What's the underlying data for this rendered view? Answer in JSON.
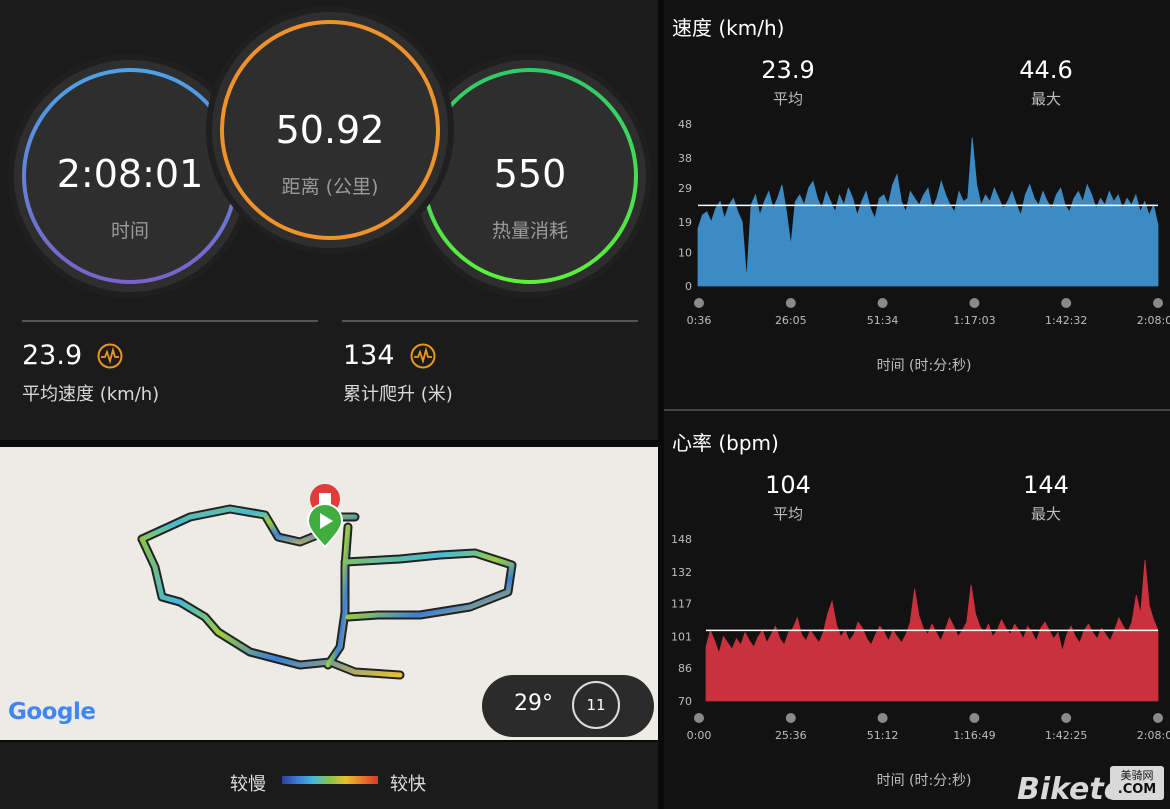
{
  "summary": {
    "time": {
      "value": "2:08:01",
      "label": "时间"
    },
    "distance": {
      "value": "50.92",
      "label": "距离 (公里)"
    },
    "calories": {
      "value": "550",
      "label": "热量消耗"
    },
    "avg_speed": {
      "value": "23.9",
      "label": "平均速度 (km/h)"
    },
    "elevation_gain": {
      "value": "134",
      "label": "累计爬升 (米)"
    },
    "colors": {
      "time_ring_top": "#4aa3e8",
      "time_ring_bottom": "#7a62c9",
      "distance_ring": "#f0922b",
      "calories_ring": "#3fd24f",
      "pulse_icon": "#e8961e"
    },
    "icons": {
      "pulse": "pulse-icon"
    }
  },
  "map": {
    "google_logo": "Google",
    "temperature": "29°",
    "wind_speed": "11",
    "markers": {
      "start": "play-marker",
      "end": "stop-marker"
    }
  },
  "legend": {
    "slow": "较慢",
    "fast": "较快",
    "gradient": [
      "#2b3fa8",
      "#3a7fd8",
      "#46b9d6",
      "#8bc34a",
      "#e6c12e",
      "#e8782a",
      "#d83a2b"
    ]
  },
  "speed_chart": {
    "title": "速度 (km/h)",
    "avg_value": "23.9",
    "avg_label": "平均",
    "max_value": "44.6",
    "max_label": "最大",
    "x_caption": "时间 (时:分:秒)",
    "color": "#3d8bc4"
  },
  "hr_chart": {
    "title": "心率 (bpm)",
    "avg_value": "104",
    "avg_label": "平均",
    "max_value": "144",
    "max_label": "最大",
    "x_caption": "时间 (时:分:秒)",
    "color": "#c9313d"
  },
  "watermark": {
    "brand": "Biketo",
    "badge_top": "美骑网",
    "badge_bottom": ".COM"
  },
  "chart_data": [
    {
      "type": "area",
      "title": "速度 (km/h)",
      "xlabel": "时间 (时:分:秒)",
      "ylabel": "",
      "yticks": [
        0,
        10,
        19,
        29,
        38,
        48
      ],
      "ylim": [
        0,
        48
      ],
      "xticks": [
        "0:36",
        "26:05",
        "51:34",
        "1:17:03",
        "1:42:32",
        "2:08:01"
      ],
      "average": 23.9,
      "max": 44.6,
      "series": [
        {
          "values": [
            17,
            21,
            22,
            19,
            23,
            25,
            20,
            24,
            26,
            22,
            19,
            2,
            24,
            27,
            21,
            25,
            28,
            23,
            26,
            30,
            22,
            12,
            25,
            27,
            24,
            29,
            31,
            26,
            23,
            28,
            25,
            22,
            27,
            24,
            29,
            26,
            21,
            25,
            28,
            23,
            20,
            26,
            27,
            24,
            30,
            33,
            25,
            22,
            28,
            26,
            24,
            27,
            29,
            23,
            26,
            31,
            27,
            24,
            22,
            28,
            25,
            26,
            44,
            30,
            24,
            27,
            25,
            29,
            26,
            23,
            25,
            28,
            24,
            21,
            27,
            30,
            26,
            24,
            28,
            25,
            23,
            27,
            29,
            24,
            22,
            26,
            28,
            25,
            30,
            27,
            23,
            26,
            24,
            28,
            25,
            27,
            23,
            26,
            24,
            27,
            22,
            25,
            21,
            24,
            18
          ]
        }
      ]
    },
    {
      "type": "area",
      "title": "心率 (bpm)",
      "xlabel": "时间 (时:分:秒)",
      "ylabel": "",
      "yticks": [
        70,
        86,
        101,
        117,
        132,
        148
      ],
      "ylim": [
        70,
        148
      ],
      "xticks": [
        "0:00",
        "25:36",
        "51:12",
        "1:16:49",
        "1:42:25",
        "2:08:01"
      ],
      "average": 104,
      "max": 144,
      "series": [
        {
          "values": [
            96,
            104,
            99,
            93,
            101,
            98,
            95,
            100,
            97,
            103,
            99,
            96,
            101,
            104,
            98,
            102,
            106,
            100,
            97,
            103,
            105,
            110,
            102,
            99,
            104,
            101,
            98,
            103,
            112,
            118,
            107,
            101,
            104,
            99,
            102,
            108,
            105,
            100,
            97,
            102,
            106,
            103,
            99,
            104,
            101,
            98,
            102,
            108,
            124,
            111,
            105,
            102,
            107,
            103,
            99,
            104,
            110,
            106,
            101,
            104,
            108,
            126,
            112,
            106,
            103,
            107,
            101,
            104,
            109,
            105,
            102,
            107,
            104,
            100,
            106,
            103,
            99,
            105,
            108,
            104,
            100,
            103,
            94,
            102,
            106,
            101,
            98,
            104,
            107,
            103,
            100,
            105,
            102,
            99,
            104,
            110,
            106,
            103,
            108,
            121,
            112,
            138,
            116,
            109,
            104
          ]
        }
      ]
    }
  ]
}
